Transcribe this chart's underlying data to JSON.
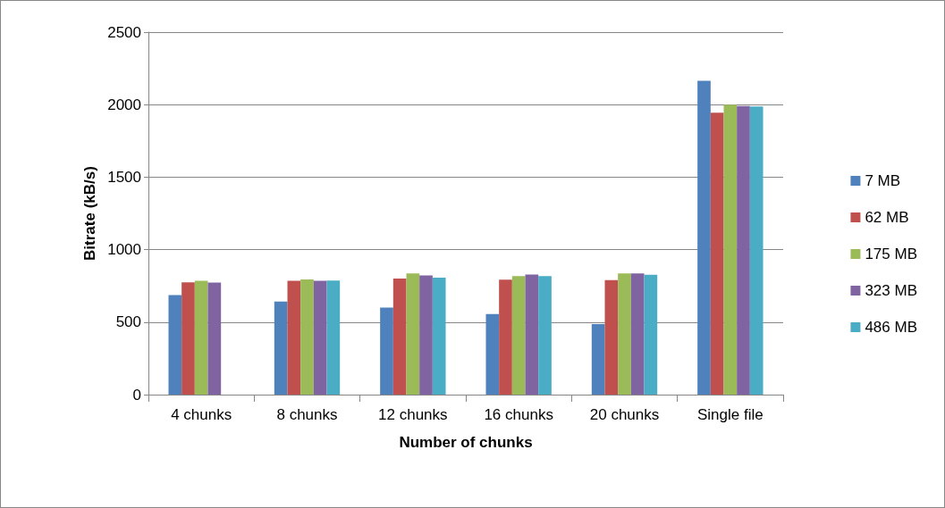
{
  "chart_data": {
    "type": "bar",
    "xlabel": "Number of chunks",
    "ylabel": "Bitrate (kB/s)",
    "categories": [
      "4 chunks",
      "8 chunks",
      "12 chunks",
      "16 chunks",
      "20 chunks",
      "Single file"
    ],
    "series": [
      {
        "name": "7 MB",
        "color": "#4f81bd",
        "values": [
          687,
          642,
          601,
          556,
          486,
          2164
        ]
      },
      {
        "name": "62 MB",
        "color": "#c0504d",
        "values": [
          775,
          785,
          801,
          793,
          789,
          1945
        ]
      },
      {
        "name": "175 MB",
        "color": "#9bbb59",
        "values": [
          785,
          795,
          836,
          818,
          836,
          2000
        ]
      },
      {
        "name": "323 MB",
        "color": "#8064a2",
        "values": [
          773,
          785,
          822,
          828,
          836,
          1990
        ]
      },
      {
        "name": "486 MB",
        "color": "#4bacc6",
        "values": [
          null,
          787,
          806,
          818,
          826,
          1988
        ]
      }
    ],
    "ylim": [
      0,
      2500
    ],
    "yticks": [
      0,
      500,
      1000,
      1500,
      2000,
      2500
    ],
    "grid": "y",
    "legend": "right"
  }
}
